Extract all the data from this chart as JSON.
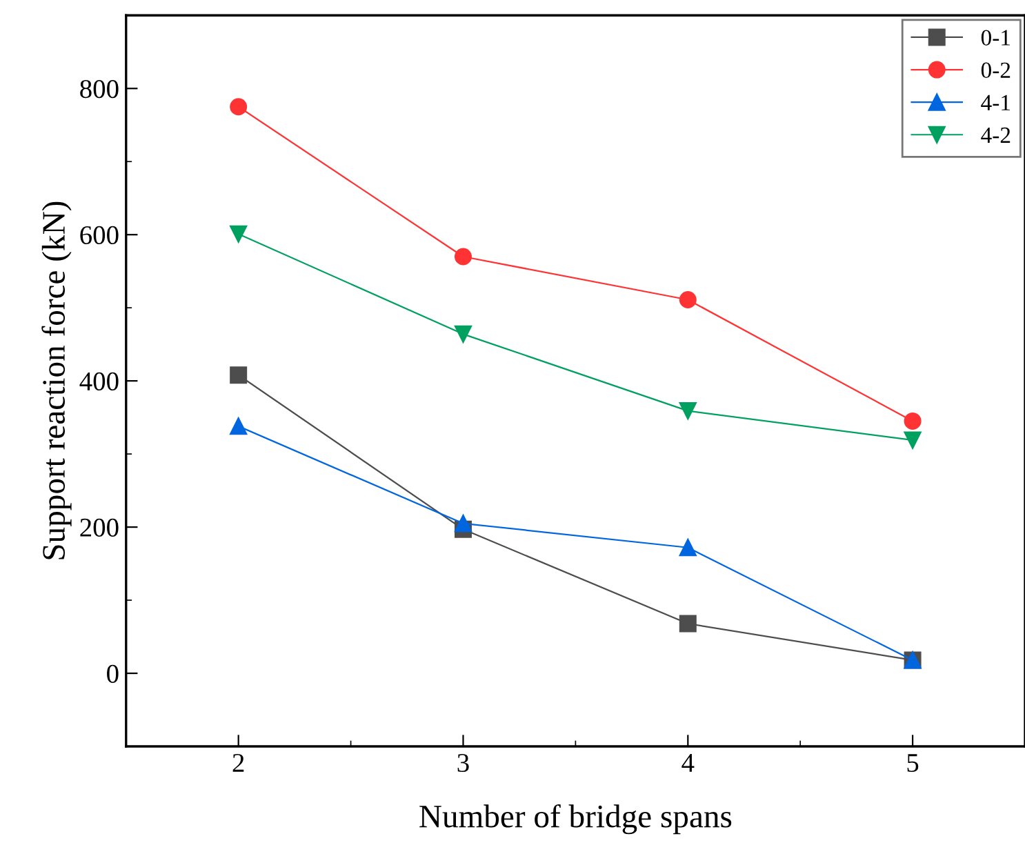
{
  "chart_data": {
    "type": "line",
    "xlabel": "Number of bridge spans",
    "ylabel": "Support reaction force (kN)",
    "x": [
      2,
      3,
      4,
      5
    ],
    "xlim": [
      1.5,
      5.5
    ],
    "xticks": [
      2,
      3,
      4,
      5
    ],
    "ylim": [
      -100,
      900
    ],
    "yticks": [
      0,
      200,
      400,
      600,
      800
    ],
    "series": [
      {
        "name": "0-1",
        "color": "#4d4d4d",
        "marker": "square",
        "values": [
          408,
          197,
          68,
          18
        ]
      },
      {
        "name": "0-2",
        "color": "#ff3333",
        "marker": "circle",
        "values": [
          775,
          570,
          511,
          345
        ]
      },
      {
        "name": "4-1",
        "color": "#0066e0",
        "marker": "triangle",
        "values": [
          338,
          205,
          172,
          18
        ]
      },
      {
        "name": "4-2",
        "color": "#00a060",
        "marker": "triangle_down",
        "values": [
          601,
          464,
          359,
          319
        ]
      }
    ],
    "grid": false,
    "legend": "top right",
    "line_style": "solid"
  }
}
